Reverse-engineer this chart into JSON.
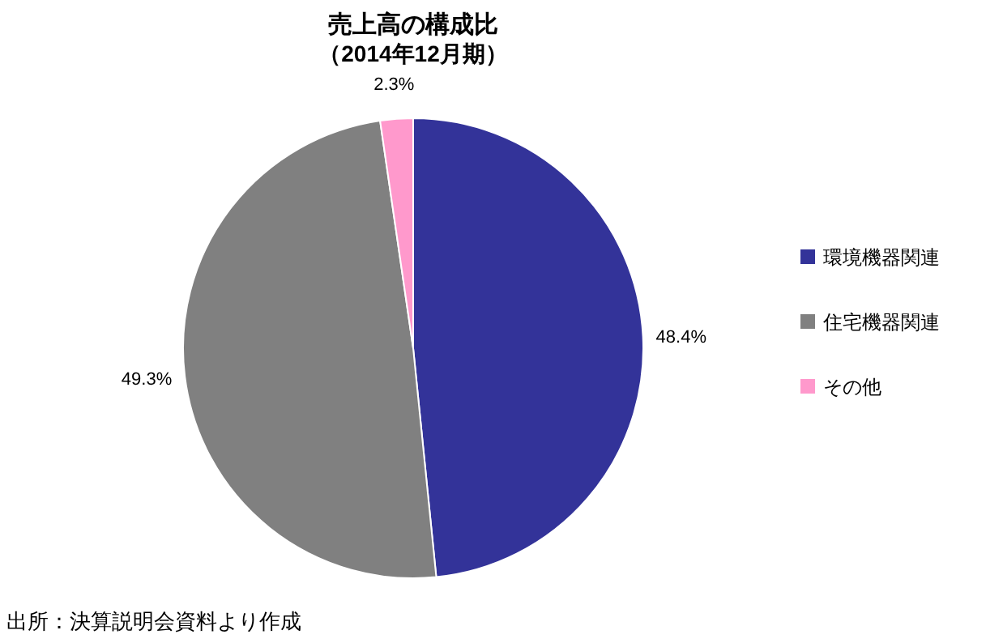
{
  "chart_data": {
    "type": "pie",
    "title": "売上高の構成比",
    "subtitle": "（2014年12月期）",
    "categories": [
      "環境機器関連",
      "住宅機器関連",
      "その他"
    ],
    "values": [
      48.4,
      49.3,
      2.3
    ],
    "value_labels": [
      "48.4%",
      "49.3%",
      "2.3%"
    ],
    "colors": [
      "#333399",
      "#808080",
      "#ff99cc"
    ],
    "legend": "right",
    "annotations": [
      "出所：決算説明会資料より作成"
    ]
  }
}
